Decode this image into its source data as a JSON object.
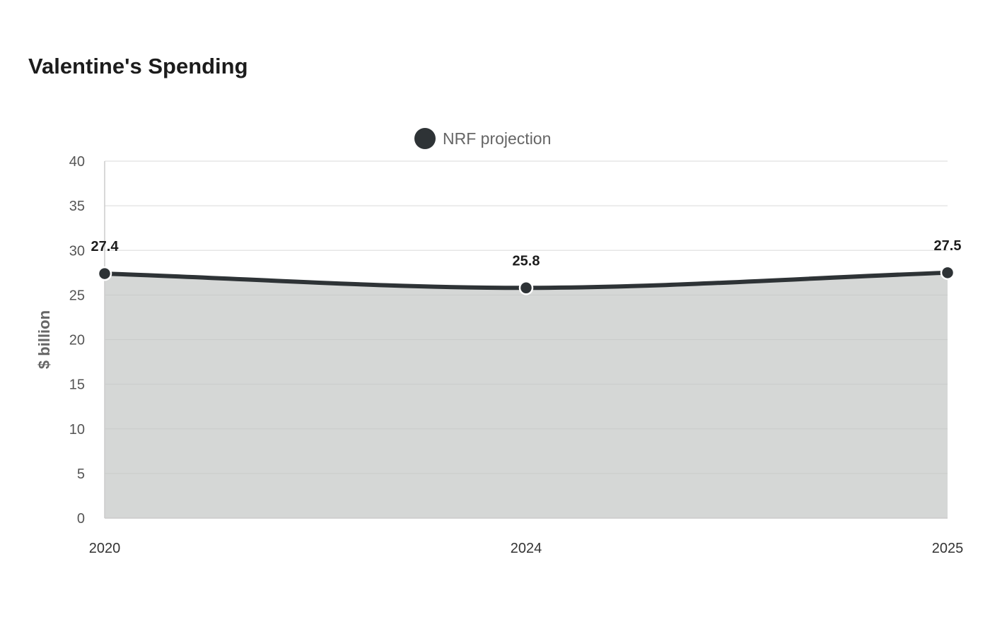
{
  "chart_data": {
    "type": "area",
    "title": "Valentine's Spending",
    "xlabel": "",
    "ylabel": "$ billion",
    "categories": [
      "2020",
      "2024",
      "2025"
    ],
    "series": [
      {
        "name": "NRF projection",
        "values": [
          27.4,
          25.8,
          27.5
        ],
        "data_labels": [
          "27.4",
          "25.8",
          "27.5"
        ],
        "color": "#2e3336",
        "fill_color": "#d5d7d6"
      }
    ],
    "ylim": [
      0,
      40
    ],
    "yticks": [
      0,
      5,
      10,
      15,
      20,
      25,
      30,
      35,
      40
    ],
    "grid": true,
    "legend_position": "top-center"
  }
}
